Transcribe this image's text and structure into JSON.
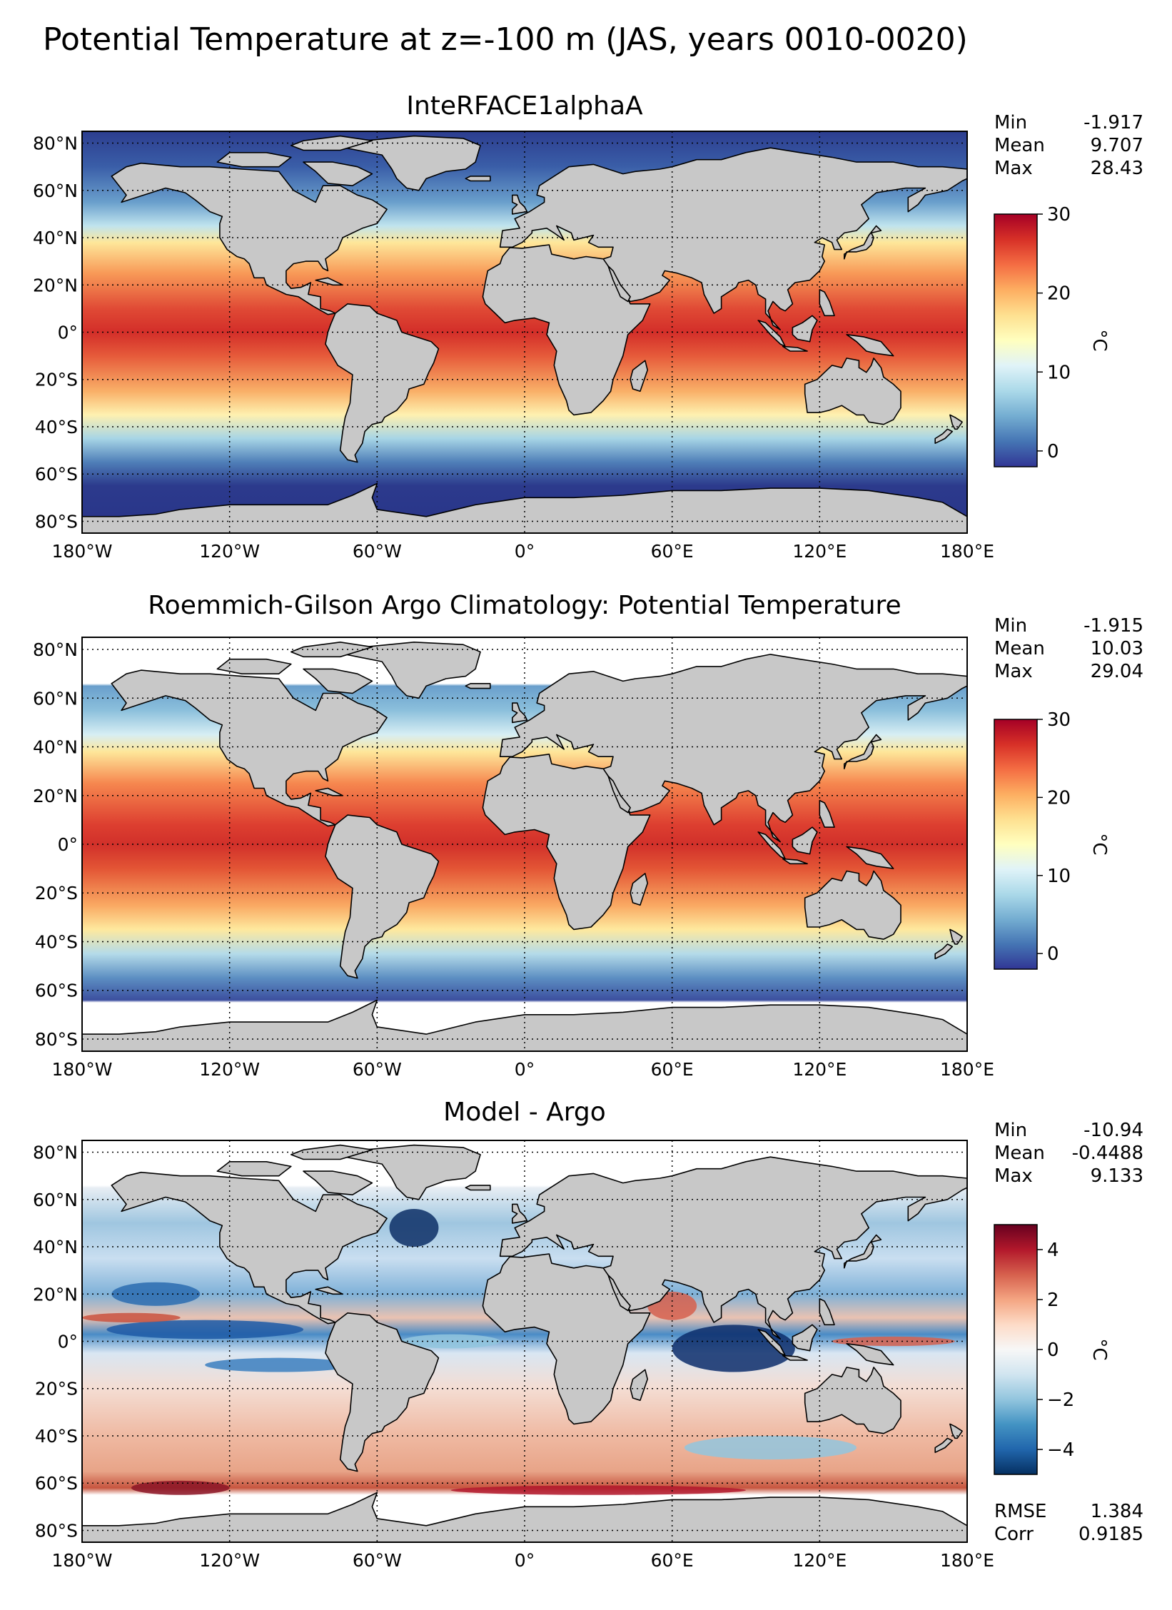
{
  "figure": {
    "title": "Potential Temperature at z=-100 m (JAS, years 0010-0020)",
    "colors": {
      "land": "#c8c8c8",
      "missing": "#ffffff",
      "warm_scale": [
        "#313695",
        "#4575b4",
        "#74add1",
        "#abd9e9",
        "#e0f3f8",
        "#ffffbf",
        "#fee090",
        "#fdae61",
        "#f46d43",
        "#d73027",
        "#a50026"
      ],
      "diff_scale": [
        "#053061",
        "#2166ac",
        "#4393c3",
        "#92c5de",
        "#d1e5f0",
        "#f7f7f7",
        "#fddbc7",
        "#f4a582",
        "#d6604d",
        "#b2182b",
        "#67001f"
      ]
    }
  },
  "chart_data": [
    {
      "type": "heatmap",
      "title": "InteRFACE1alphaA",
      "variable": "Potential Temperature",
      "x_ticks": [
        "180°W",
        "120°W",
        "60°W",
        "0°",
        "60°E",
        "120°E",
        "180°E"
      ],
      "y_ticks": [
        "80°N",
        "60°N",
        "40°N",
        "20°N",
        "0°",
        "20°S",
        "40°S",
        "60°S",
        "80°S"
      ],
      "xlim": [
        -180,
        180
      ],
      "ylim": [
        -85,
        85
      ],
      "stats": [
        {
          "label": "Min",
          "value": "-1.917"
        },
        {
          "label": "Mean",
          "value": "9.707"
        },
        {
          "label": "Max",
          "value": "28.43"
        }
      ],
      "colorbar": {
        "label": "°C",
        "range": [
          -2,
          30
        ],
        "ticks": [
          "30",
          "20",
          "10",
          "0"
        ],
        "tick_values": [
          30,
          20,
          10,
          0
        ],
        "scale": "warm"
      }
    },
    {
      "type": "heatmap",
      "title": "Roemmich-Gilson Argo Climatology: Potential Temperature",
      "variable": "Potential Temperature",
      "x_ticks": [
        "180°W",
        "120°W",
        "60°W",
        "0°",
        "60°E",
        "120°E",
        "180°E"
      ],
      "y_ticks": [
        "80°N",
        "60°N",
        "40°N",
        "20°N",
        "0°",
        "20°S",
        "40°S",
        "60°S",
        "80°S"
      ],
      "xlim": [
        -180,
        180
      ],
      "ylim": [
        -85,
        85
      ],
      "data_lat_range": [
        -65,
        65
      ],
      "stats": [
        {
          "label": "Min",
          "value": "-1.915"
        },
        {
          "label": "Mean",
          "value": "10.03"
        },
        {
          "label": "Max",
          "value": "29.04"
        }
      ],
      "colorbar": {
        "label": "°C",
        "range": [
          -2,
          30
        ],
        "ticks": [
          "30",
          "20",
          "10",
          "0"
        ],
        "tick_values": [
          30,
          20,
          10,
          0
        ],
        "scale": "warm"
      }
    },
    {
      "type": "heatmap",
      "title": "Model - Argo",
      "variable": "Potential Temperature difference",
      "x_ticks": [
        "180°W",
        "120°W",
        "60°W",
        "0°",
        "60°E",
        "120°E",
        "180°E"
      ],
      "y_ticks": [
        "80°N",
        "60°N",
        "40°N",
        "20°N",
        "0°",
        "20°S",
        "40°S",
        "60°S",
        "80°S"
      ],
      "xlim": [
        -180,
        180
      ],
      "ylim": [
        -85,
        85
      ],
      "data_lat_range": [
        -65,
        65
      ],
      "stats": [
        {
          "label": "Min",
          "value": "-10.94"
        },
        {
          "label": "Mean",
          "value": "-0.4488"
        },
        {
          "label": "Max",
          "value": "9.133"
        }
      ],
      "bottom_stats": [
        {
          "label": "RMSE",
          "value": "1.384"
        },
        {
          "label": "Corr",
          "value": "0.9185"
        }
      ],
      "colorbar": {
        "label": "°C",
        "range": [
          -5,
          5
        ],
        "ticks": [
          "4",
          "2",
          "0",
          "−2",
          "−4"
        ],
        "tick_values": [
          4,
          2,
          0,
          -2,
          -4
        ],
        "scale": "diff"
      }
    }
  ]
}
